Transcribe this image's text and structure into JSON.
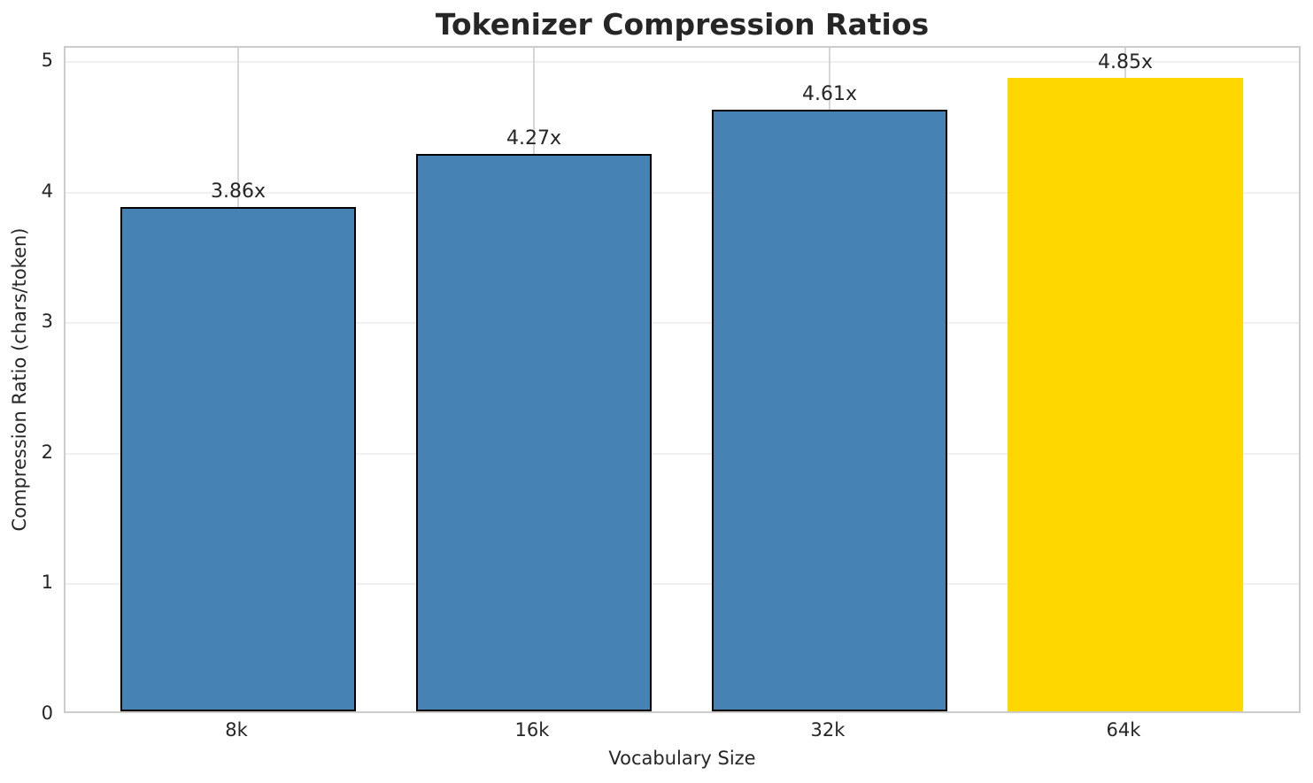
{
  "chart_data": {
    "type": "bar",
    "title": "Tokenizer Compression Ratios",
    "xlabel": "Vocabulary Size",
    "ylabel": "Compression Ratio (chars/token)",
    "categories": [
      "8k",
      "16k",
      "32k",
      "64k"
    ],
    "values": [
      3.86,
      4.27,
      4.61,
      4.85
    ],
    "bar_labels": [
      "3.86x",
      "4.27x",
      "4.61x",
      "4.85x"
    ],
    "bar_colors": [
      "#4682B4",
      "#4682B4",
      "#4682B4",
      "#FFD700"
    ],
    "bar_edge_colors": [
      "#000000",
      "#000000",
      "#000000",
      "none"
    ],
    "highlighted_category": "64k",
    "ylim": [
      0,
      5
    ],
    "yticks": [
      "0",
      "1",
      "2",
      "3",
      "4",
      "5"
    ],
    "grid": "both",
    "legend_position": "none",
    "colors": {
      "bar_default": "#4682B4",
      "bar_highlight": "#FFD700",
      "text": "#262626",
      "spine": "#cccccc",
      "grid_horizontal": "#f0f0f0",
      "grid_vertical": "#d6d6d6",
      "background": "#ffffff"
    }
  }
}
